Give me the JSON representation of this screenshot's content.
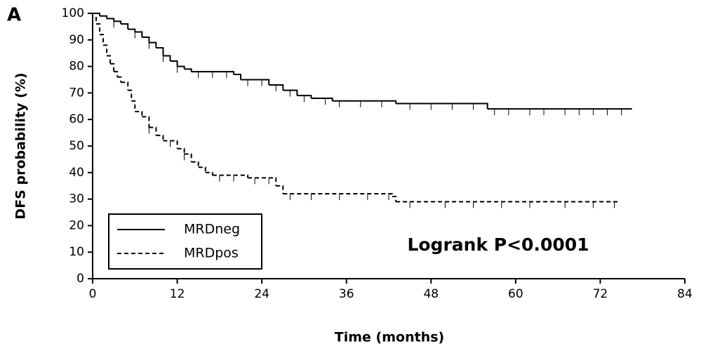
{
  "chart_data": {
    "type": "step",
    "panel_label": "A",
    "xlabel": "Time (months)",
    "ylabel": "DFS probability (%)",
    "annotation": "Logrank P<0.0001",
    "xlim": [
      0,
      84
    ],
    "ylim": [
      0,
      100
    ],
    "xticks": [
      0,
      12,
      24,
      36,
      48,
      60,
      72,
      84
    ],
    "yticks": [
      0,
      10,
      20,
      30,
      40,
      50,
      60,
      70,
      80,
      90,
      100
    ],
    "legend": "lower left",
    "series": [
      {
        "name": "MRDneg",
        "color": "#000000",
        "dash": "none",
        "x": [
          0,
          1,
          2,
          3,
          4,
          5,
          6,
          7,
          8,
          9,
          10,
          11,
          12,
          13,
          14,
          20,
          21,
          25,
          27,
          29,
          31,
          34,
          43,
          56,
          76.5
        ],
        "values": [
          100,
          99,
          98,
          97,
          96,
          94,
          93,
          91,
          89,
          87,
          84,
          82,
          80,
          79,
          78,
          77,
          75,
          73,
          71,
          69,
          68,
          67,
          66,
          64,
          64
        ],
        "censored_x": [
          3,
          6,
          8,
          10,
          12,
          15,
          17,
          19,
          22,
          24,
          26,
          28,
          30,
          33,
          35,
          38,
          41,
          45,
          48,
          51,
          54,
          57,
          59,
          62,
          64,
          67,
          69,
          71,
          73,
          75
        ]
      },
      {
        "name": "MRDpos",
        "color": "#000000",
        "dash": "6,4",
        "x": [
          0,
          0.5,
          1,
          1.5,
          2,
          2.5,
          3,
          3.5,
          4,
          5,
          5.5,
          6,
          7,
          8,
          9,
          10,
          12,
          13,
          14,
          15,
          16,
          17,
          22,
          26,
          27,
          42.5,
          43,
          74.8
        ],
        "values": [
          100,
          96,
          92,
          88,
          84,
          81,
          78,
          76,
          74,
          71,
          67,
          63,
          61,
          57,
          54,
          52,
          49,
          47,
          44,
          42,
          40,
          39,
          38,
          35,
          32,
          31,
          29,
          29
        ],
        "censored_x": [
          8,
          11,
          13,
          18,
          20,
          23,
          25,
          28,
          31,
          35,
          39,
          42,
          45,
          50,
          54,
          58,
          62,
          67,
          71,
          74
        ]
      }
    ]
  }
}
